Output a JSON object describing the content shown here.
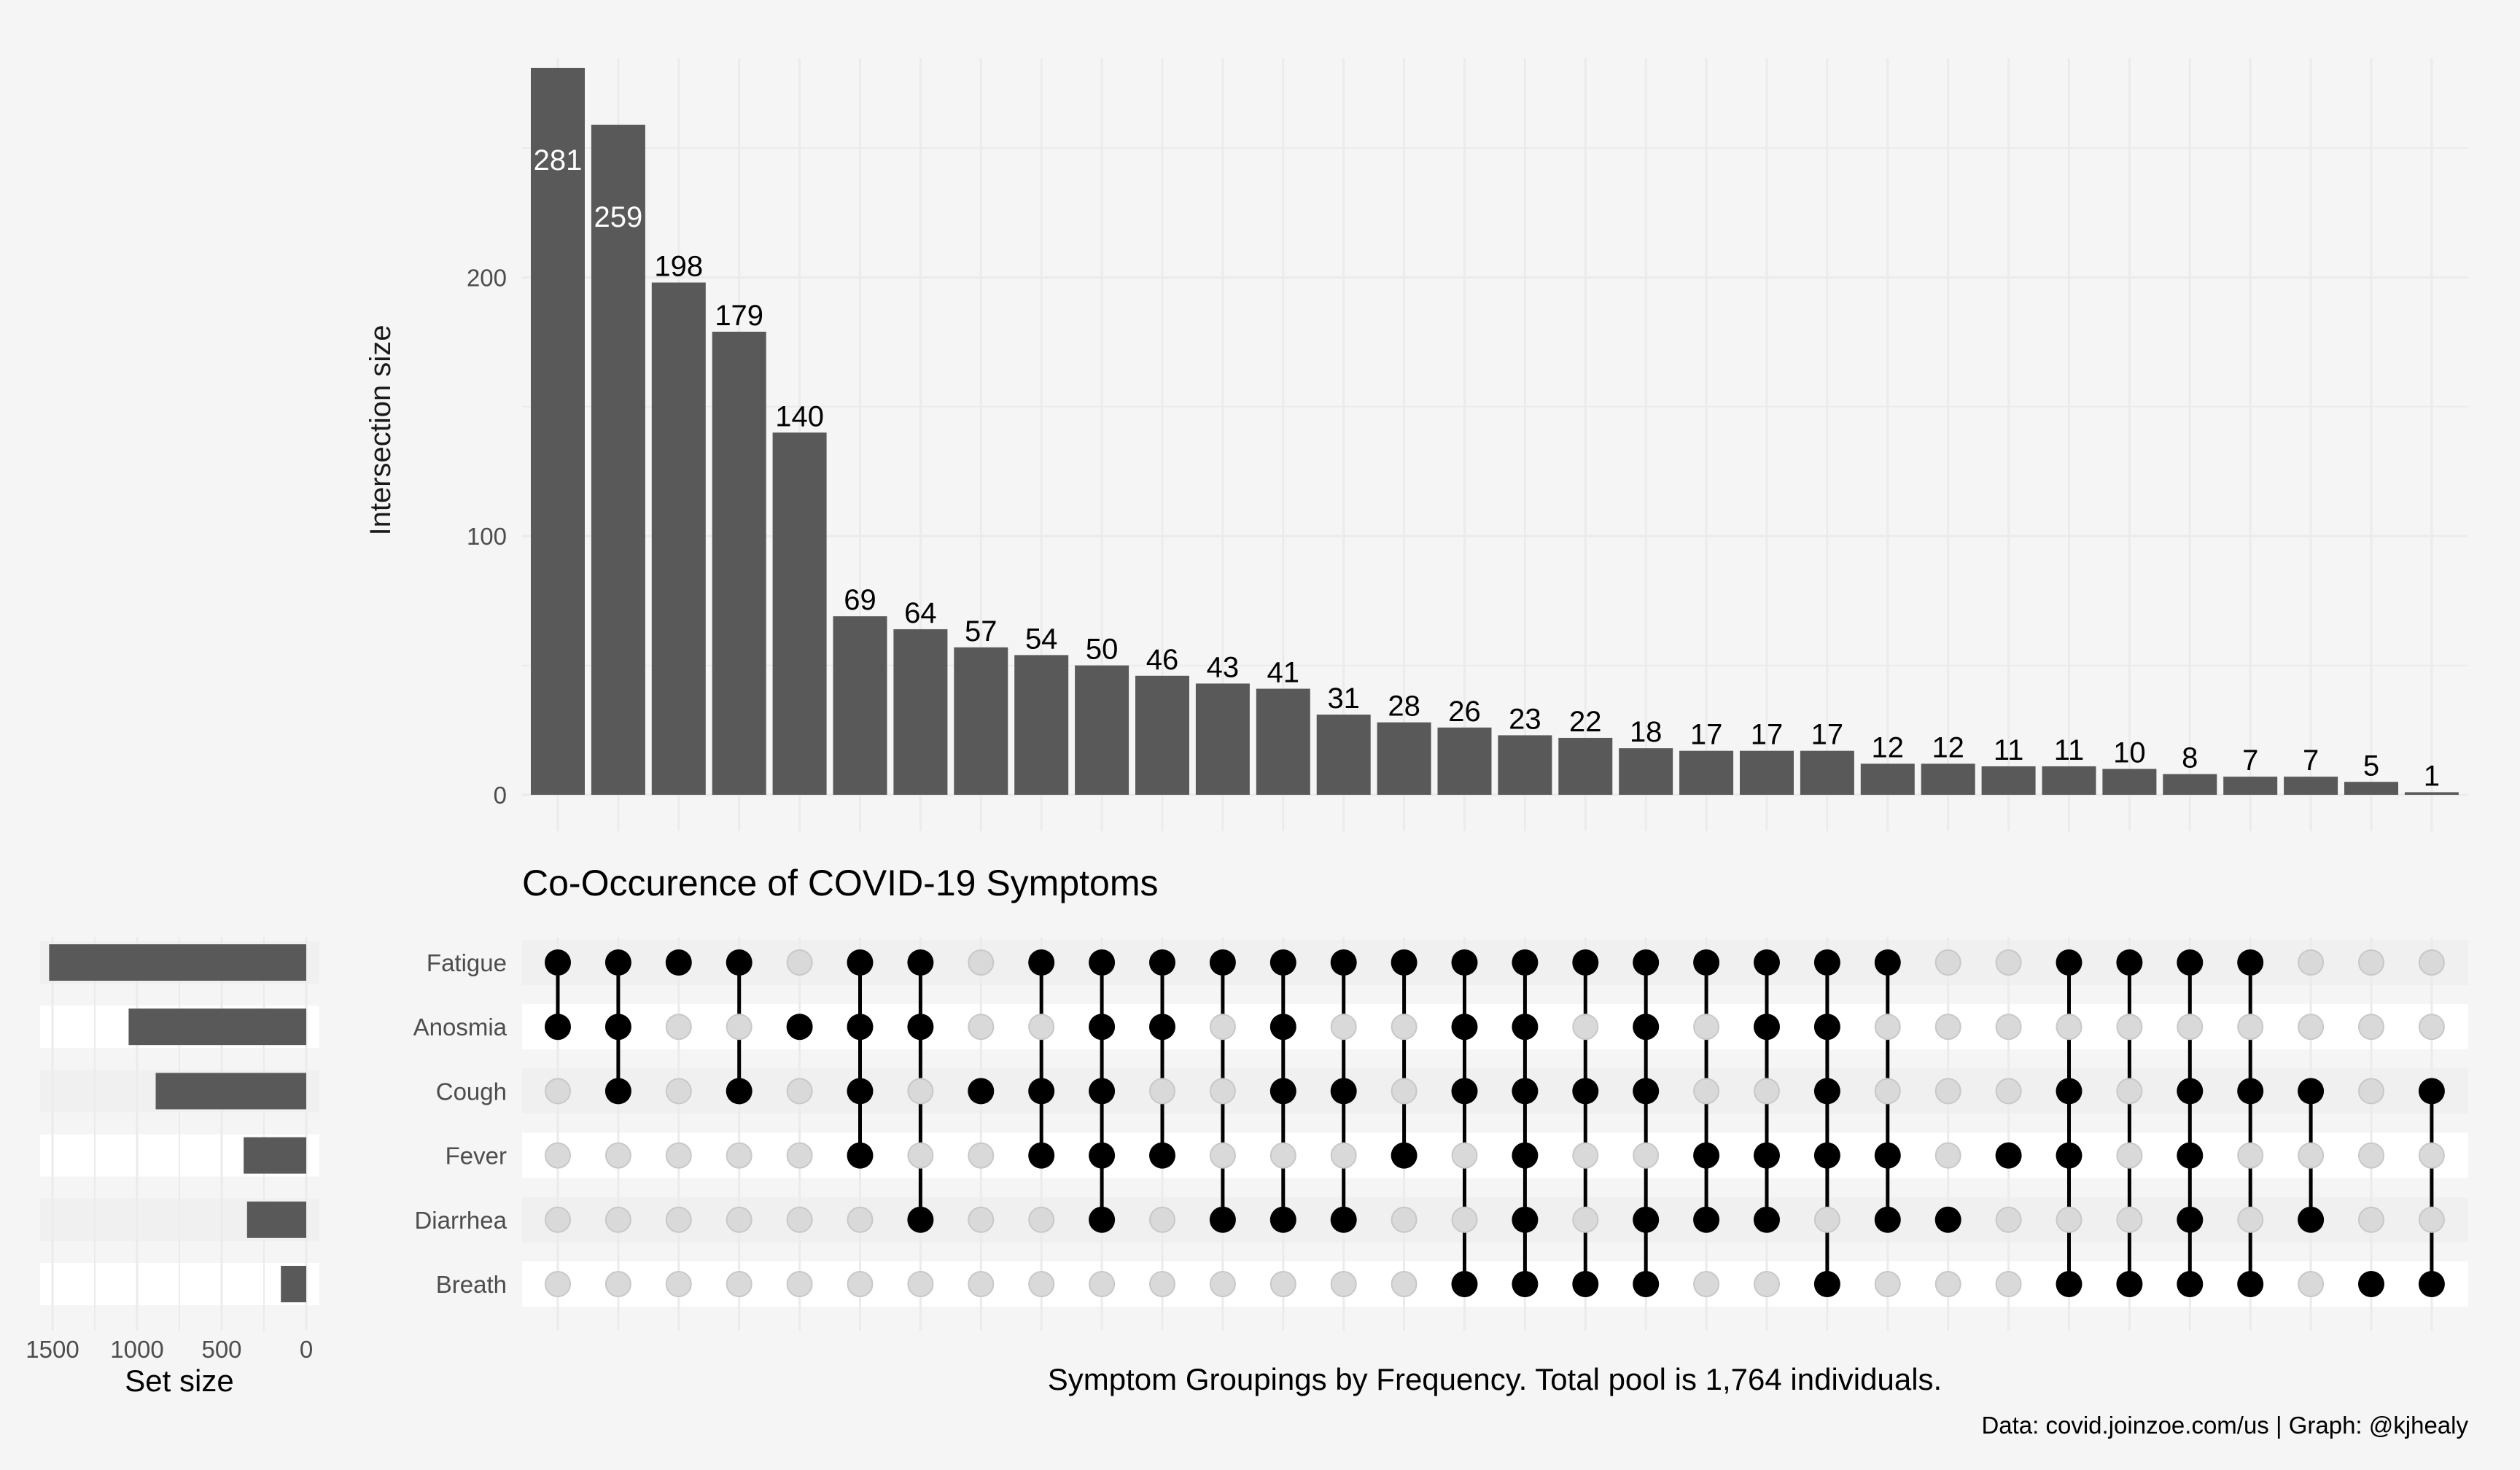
{
  "title": "Co-Occurence of COVID-19 Symptoms",
  "xlabel": "Symptom Groupings by Frequency. Total pool is 1,764 individuals.",
  "caption": "Data: covid.joinzoe.com/us | Graph: @kjhealy",
  "colors": {
    "bar": "#595959",
    "dot_on": "#000000",
    "dot_off": "#d9d9d9",
    "background": "#f5f5f5",
    "stripe": "#f0f0f0"
  },
  "chart_data": [
    {
      "type": "bar",
      "name": "intersections",
      "ylabel": "Intersection size",
      "ylim": [
        0,
        281
      ],
      "yticks": [
        0,
        100,
        200
      ],
      "grid": true,
      "values": [
        281,
        259,
        198,
        179,
        140,
        69,
        64,
        57,
        54,
        50,
        46,
        43,
        41,
        31,
        28,
        26,
        23,
        22,
        18,
        17,
        17,
        17,
        12,
        12,
        11,
        11,
        10,
        8,
        7,
        7,
        5,
        1
      ],
      "data_labels": [
        "281",
        "259",
        "198",
        "179",
        "140",
        "69",
        "64",
        "57",
        "54",
        "50",
        "46",
        "43",
        "41",
        "31",
        "28",
        "26",
        "23",
        "22",
        "18",
        "17",
        "17",
        "17",
        "12",
        "12",
        "11",
        "11",
        "10",
        "8",
        "7",
        "7",
        "5",
        "1"
      ],
      "combinations": [
        [
          "Fatigue",
          "Anosmia"
        ],
        [
          "Fatigue",
          "Anosmia",
          "Cough"
        ],
        [
          "Fatigue"
        ],
        [
          "Fatigue",
          "Cough"
        ],
        [
          "Anosmia"
        ],
        [
          "Fatigue",
          "Anosmia",
          "Cough",
          "Fever"
        ],
        [
          "Fatigue",
          "Anosmia",
          "Diarrhea"
        ],
        [
          "Cough"
        ],
        [
          "Fatigue",
          "Cough",
          "Fever"
        ],
        [
          "Fatigue",
          "Anosmia",
          "Cough",
          "Fever",
          "Diarrhea"
        ],
        [
          "Fatigue",
          "Anosmia",
          "Fever"
        ],
        [
          "Fatigue",
          "Diarrhea"
        ],
        [
          "Fatigue",
          "Anosmia",
          "Cough",
          "Diarrhea"
        ],
        [
          "Fatigue",
          "Cough",
          "Diarrhea"
        ],
        [
          "Fatigue",
          "Fever"
        ],
        [
          "Fatigue",
          "Anosmia",
          "Cough",
          "Breath"
        ],
        [
          "Fatigue",
          "Anosmia",
          "Cough",
          "Fever",
          "Diarrhea",
          "Breath"
        ],
        [
          "Fatigue",
          "Cough",
          "Breath"
        ],
        [
          "Fatigue",
          "Anosmia",
          "Cough",
          "Diarrhea",
          "Breath"
        ],
        [
          "Fatigue",
          "Fever",
          "Diarrhea"
        ],
        [
          "Fatigue",
          "Anosmia",
          "Fever",
          "Diarrhea"
        ],
        [
          "Fatigue",
          "Anosmia",
          "Cough",
          "Fever",
          "Breath"
        ],
        [
          "Fatigue",
          "Fever",
          "Diarrhea"
        ],
        [
          "Diarrhea"
        ],
        [
          "Fever"
        ],
        [
          "Fatigue",
          "Cough",
          "Fever",
          "Breath"
        ],
        [
          "Fatigue",
          "Breath"
        ],
        [
          "Fatigue",
          "Cough",
          "Fever",
          "Diarrhea",
          "Breath"
        ],
        [
          "Fatigue",
          "Cough",
          "Breath"
        ],
        [
          "Cough",
          "Diarrhea"
        ],
        [
          "Breath"
        ],
        [
          "Cough",
          "Breath"
        ]
      ]
    },
    {
      "type": "bar",
      "name": "set_sizes",
      "orientation": "horizontal",
      "xlabel": "Set size",
      "xlim": [
        1500,
        0
      ],
      "xticks": [
        1500,
        1000,
        500,
        0
      ],
      "categories": [
        "Fatigue",
        "Anosmia",
        "Cough",
        "Fever",
        "Diarrhea",
        "Breath"
      ],
      "values": [
        1520,
        1050,
        890,
        370,
        350,
        150
      ]
    }
  ]
}
